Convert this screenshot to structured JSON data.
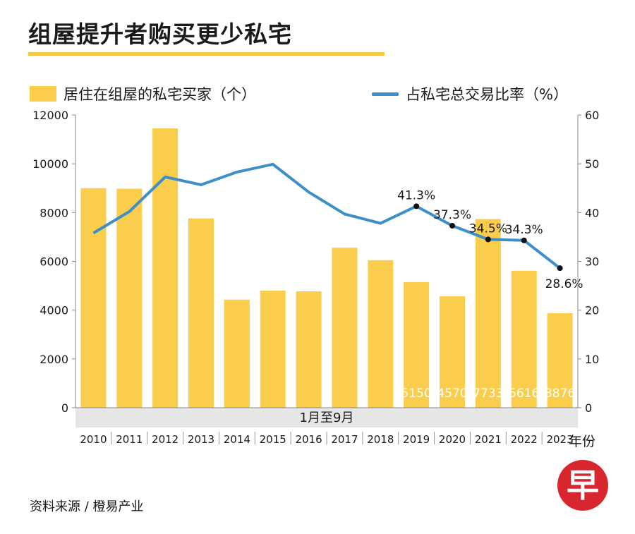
{
  "title": "组屋提升者购买更少私宅",
  "legend": {
    "bar_label": "居住在组屋的私宅买家（个）",
    "line_label": "占私宅总交易比率（%）"
  },
  "source": "资料来源 / 橙易产业",
  "logo_text": "早",
  "note_band": "1月至9月",
  "x_unit": "年份",
  "colors": {
    "bar": "#fbcd4c",
    "line": "#3d8fc7",
    "band": "#e6e6e6"
  },
  "chart_data": {
    "type": "bar",
    "categories": [
      "2010",
      "2011",
      "2012",
      "2013",
      "2014",
      "2015",
      "2016",
      "2017",
      "2018",
      "2019",
      "2020",
      "2021",
      "2022",
      "2023"
    ],
    "series": [
      {
        "name": "居住在组屋的私宅买家（个）",
        "type": "bar",
        "axis": "left",
        "values": [
          9000,
          8980,
          11450,
          7760,
          4430,
          4800,
          4770,
          6560,
          6050,
          5150,
          4570,
          7733,
          5616,
          3876
        ]
      },
      {
        "name": "占私宅总交易比率（%）",
        "type": "line",
        "axis": "right",
        "values": [
          35.8,
          40.2,
          47.3,
          45.7,
          48.3,
          49.9,
          44.2,
          39.7,
          37.8,
          41.3,
          37.3,
          34.5,
          34.3,
          28.6
        ]
      }
    ],
    "bar_value_labels": {
      "2019": "5150",
      "2020": "4570",
      "2021": "7733",
      "2022": "5616",
      "2023": "3876"
    },
    "line_value_labels": {
      "2019": "41.3%",
      "2020": "37.3%",
      "2021": "34.5%",
      "2022": "34.3%",
      "2023": "28.6%"
    },
    "y_left": {
      "min": 0,
      "max": 12000,
      "ticks": [
        "0",
        "2000",
        "4000",
        "6000",
        "8000",
        "10000",
        "12000"
      ]
    },
    "y_right": {
      "min": 0,
      "max": 60,
      "ticks": [
        "0",
        "10",
        "20",
        "30",
        "40",
        "50",
        "60"
      ]
    },
    "grid": false,
    "legend_position": "top"
  }
}
